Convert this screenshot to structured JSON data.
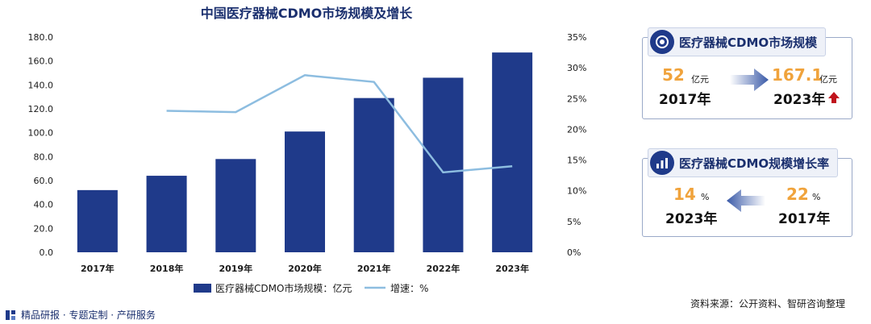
{
  "chart_data": {
    "type": "bar+line",
    "title": "中国医疗器械CDMO市场规模及增长",
    "categories": [
      "2017年",
      "2018年",
      "2019年",
      "2020年",
      "2021年",
      "2022年",
      "2023年"
    ],
    "series": [
      {
        "name": "医疗器械CDMO市场规模：亿元",
        "type": "bar",
        "axis": "left",
        "values": [
          52,
          64,
          78,
          101,
          129,
          146,
          167.1
        ],
        "color": "#1f3a8a"
      },
      {
        "name": "增速：%",
        "type": "line",
        "axis": "right",
        "values": [
          null,
          23,
          22.8,
          28.8,
          27.7,
          13,
          14
        ],
        "color": "#8dbde0"
      }
    ],
    "y_left": {
      "min": 0,
      "max": 180,
      "step": 20,
      "ticks": [
        "0.0",
        "20.0",
        "40.0",
        "60.0",
        "80.0",
        "100.0",
        "120.0",
        "140.0",
        "160.0",
        "180.0"
      ]
    },
    "y_right": {
      "min": 0,
      "max": 35,
      "step": 5,
      "ticks": [
        "0%",
        "5%",
        "10%",
        "15%",
        "20%",
        "25%",
        "30%",
        "35%"
      ]
    },
    "grid": false,
    "legend": "bottom"
  },
  "card_size": {
    "title": "医疗器械CDMO市场规模",
    "from_value": "52",
    "from_unit": "亿元",
    "from_year": "2017年",
    "to_value": "167.1",
    "to_unit": "亿元",
    "to_year": "2023年"
  },
  "card_growth": {
    "title": "医疗器械CDMO规模增长率",
    "left_value": "14",
    "left_unit": "%",
    "left_year": "2023年",
    "right_value": "22",
    "right_unit": "%",
    "right_year": "2017年"
  },
  "footer": {
    "left": "精品研报 · 专题定制 · 产研服务",
    "right": "资料来源：公开资料、智研咨询整理"
  },
  "colors": {
    "bar": "#1f3a8a",
    "line": "#8dbde0",
    "accent": "#f0a33c",
    "arrow_up": "#c0141c"
  }
}
